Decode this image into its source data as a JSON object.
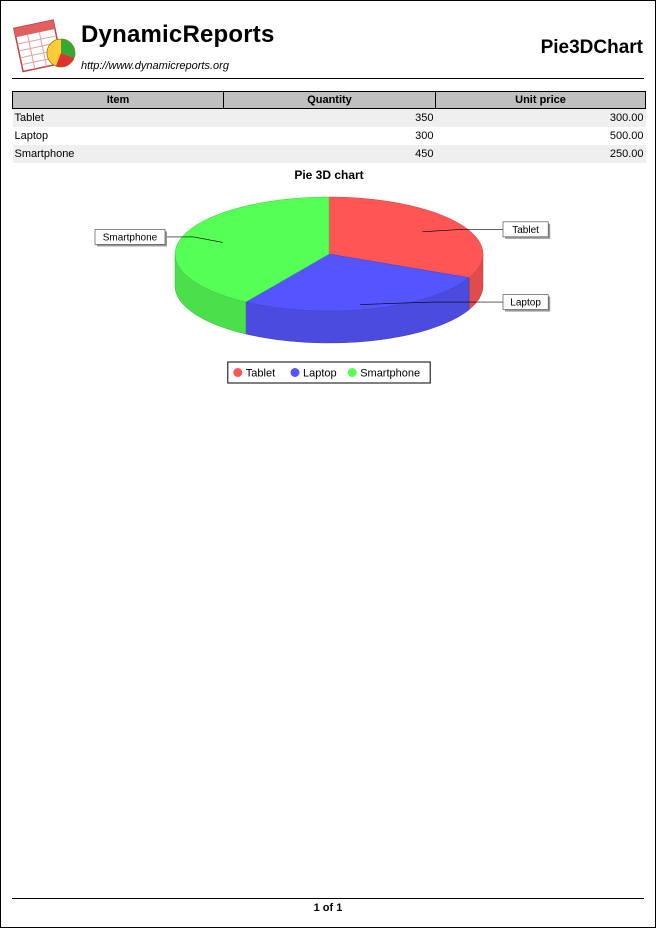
{
  "header": {
    "brand": "DynamicReports",
    "url": "http://www.dynamicreports.org",
    "report_title": "Pie3DChart"
  },
  "table": {
    "columns": [
      "Item",
      "Quantity",
      "Unit price"
    ],
    "rows": [
      [
        "Tablet",
        "350",
        "300.00"
      ],
      [
        "Laptop",
        "300",
        "500.00"
      ],
      [
        "Smartphone",
        "450",
        "250.00"
      ]
    ]
  },
  "chart_data": {
    "type": "pie",
    "title": "Pie 3D chart",
    "labels": [
      "Tablet",
      "Laptop",
      "Smartphone"
    ],
    "values": [
      350,
      300,
      450
    ],
    "colors": [
      "#ff5555",
      "#5555ff",
      "#55ff55"
    ],
    "legend_position": "bottom"
  },
  "footer": {
    "page_label": "1 of 1"
  }
}
